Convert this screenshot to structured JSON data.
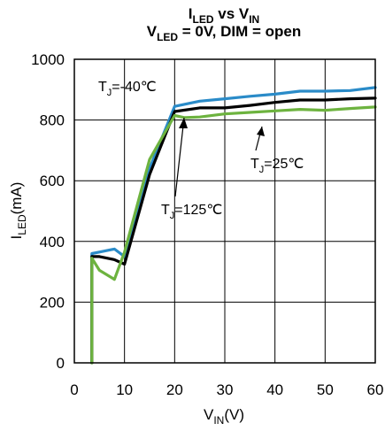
{
  "chart_data": {
    "type": "line",
    "title": {
      "line1": {
        "main": "I",
        "sub": "LED",
        "middle": " vs V",
        "sub2": "IN"
      },
      "line2": {
        "main": "V",
        "sub": "LED",
        "rest": " = 0V, DIM = open"
      }
    },
    "xlabel": {
      "main": "V",
      "sub": "IN",
      "rest": "(V)"
    },
    "ylabel": {
      "main": "I",
      "sub": "LED",
      "rest": "(mA)"
    },
    "xlim": [
      0,
      60
    ],
    "ylim": [
      0,
      1000
    ],
    "xticks": [
      "0",
      "10",
      "20",
      "30",
      "40",
      "50",
      "60"
    ],
    "yticks": [
      "0",
      "200",
      "400",
      "600",
      "800",
      "1000"
    ],
    "grid": true,
    "series": [
      {
        "name": "TJ=-40℃",
        "color": "#2a8bc8",
        "points": [
          [
            3.5,
            0
          ],
          [
            3.5,
            360
          ],
          [
            5,
            365
          ],
          [
            8,
            375
          ],
          [
            10,
            350
          ],
          [
            15,
            640
          ],
          [
            20,
            845
          ],
          [
            25,
            862
          ],
          [
            30,
            870
          ],
          [
            35,
            878
          ],
          [
            40,
            885
          ],
          [
            45,
            895
          ],
          [
            50,
            895
          ],
          [
            55,
            897
          ],
          [
            60,
            907
          ]
        ]
      },
      {
        "name": "TJ=25℃",
        "color": "#000000",
        "points": [
          [
            3.5,
            0
          ],
          [
            3.5,
            350
          ],
          [
            5,
            350
          ],
          [
            8,
            340
          ],
          [
            10,
            325
          ],
          [
            15,
            620
          ],
          [
            20,
            828
          ],
          [
            25,
            840
          ],
          [
            30,
            840
          ],
          [
            35,
            848
          ],
          [
            40,
            858
          ],
          [
            45,
            866
          ],
          [
            50,
            866
          ],
          [
            55,
            870
          ],
          [
            60,
            872
          ]
        ]
      },
      {
        "name": "TJ=125℃",
        "color": "#6db33f",
        "points": [
          [
            3.5,
            0
          ],
          [
            3.5,
            345
          ],
          [
            5,
            305
          ],
          [
            8,
            275
          ],
          [
            10,
            365
          ],
          [
            15,
            670
          ],
          [
            20,
            815
          ],
          [
            22,
            808
          ],
          [
            25,
            810
          ],
          [
            30,
            820
          ],
          [
            35,
            825
          ],
          [
            40,
            830
          ],
          [
            45,
            835
          ],
          [
            50,
            832
          ],
          [
            55,
            838
          ],
          [
            60,
            843
          ]
        ]
      }
    ],
    "annotations": [
      {
        "main": "T",
        "sub": "J",
        "rest": "=-40℃",
        "series": 0
      },
      {
        "main": "T",
        "sub": "J",
        "rest": "=25℃",
        "series": 1
      },
      {
        "main": "T",
        "sub": "J",
        "rest": "=125℃",
        "series": 2
      }
    ]
  }
}
